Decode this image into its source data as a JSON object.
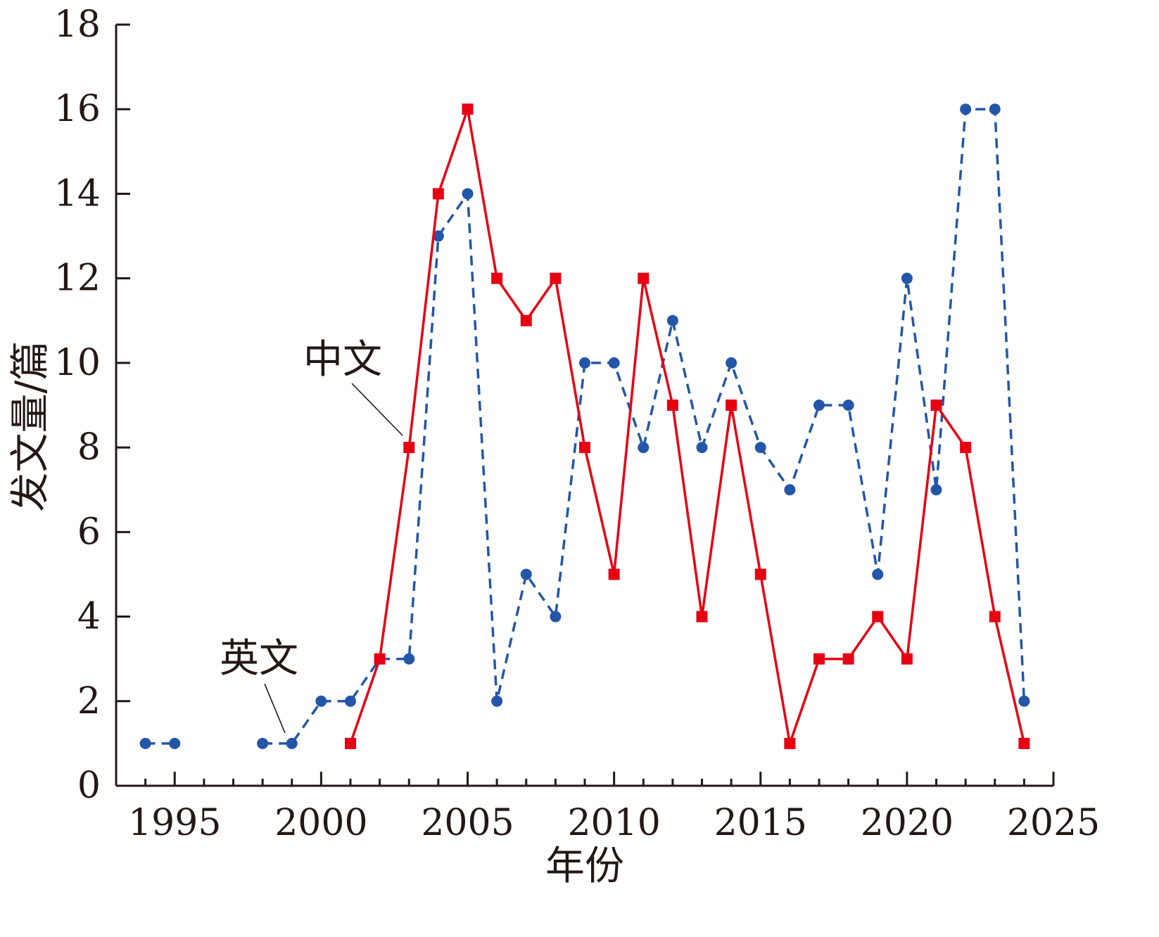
{
  "chart_data": {
    "type": "line",
    "xlabel": "年份",
    "ylabel": "发文量/篇",
    "xlim": [
      1993,
      2025
    ],
    "ylim": [
      0,
      18
    ],
    "x_ticks": [
      1995,
      2000,
      2005,
      2010,
      2015,
      2020,
      2025
    ],
    "y_ticks": [
      0,
      2,
      4,
      6,
      8,
      10,
      12,
      14,
      16,
      18
    ],
    "grid": false,
    "series": [
      {
        "name": "英文",
        "color": "#2356a8",
        "line_style": "dashed",
        "marker": "circle",
        "segments": [
          [
            [
              1994,
              1
            ],
            [
              1995,
              1
            ]
          ],
          [
            [
              1998,
              1
            ],
            [
              1999,
              1
            ],
            [
              2000,
              2
            ],
            [
              2001,
              2
            ],
            [
              2002,
              3
            ],
            [
              2003,
              3
            ],
            [
              2004,
              13
            ],
            [
              2005,
              14
            ],
            [
              2006,
              2
            ],
            [
              2007,
              5
            ],
            [
              2008,
              4
            ],
            [
              2009,
              10
            ],
            [
              2010,
              10
            ],
            [
              2011,
              8
            ],
            [
              2012,
              11
            ],
            [
              2013,
              8
            ],
            [
              2014,
              10
            ],
            [
              2015,
              8
            ],
            [
              2016,
              7
            ],
            [
              2017,
              9
            ],
            [
              2018,
              9
            ],
            [
              2019,
              5
            ],
            [
              2020,
              12
            ],
            [
              2021,
              7
            ],
            [
              2022,
              16
            ],
            [
              2023,
              16
            ],
            [
              2024,
              2
            ]
          ]
        ]
      },
      {
        "name": "中文",
        "color": "#e60012",
        "line_style": "solid",
        "marker": "square",
        "segments": [
          [
            [
              2001,
              1
            ],
            [
              2002,
              3
            ],
            [
              2003,
              8
            ],
            [
              2004,
              14
            ],
            [
              2005,
              16
            ],
            [
              2006,
              12
            ],
            [
              2007,
              11
            ],
            [
              2008,
              12
            ],
            [
              2009,
              8
            ],
            [
              2010,
              5
            ],
            [
              2011,
              12
            ],
            [
              2012,
              9
            ],
            [
              2013,
              4
            ],
            [
              2014,
              9
            ],
            [
              2015,
              5
            ],
            [
              2016,
              1
            ],
            [
              2017,
              3
            ],
            [
              2018,
              3
            ],
            [
              2019,
              4
            ],
            [
              2020,
              3
            ],
            [
              2021,
              9
            ],
            [
              2022,
              8
            ],
            [
              2023,
              4
            ],
            [
              2024,
              1
            ]
          ]
        ]
      }
    ],
    "annotations": [
      {
        "text": "中文",
        "series": 1,
        "point": [
          2003,
          8
        ]
      },
      {
        "text": "英文",
        "series": 0,
        "point": [
          1999,
          1
        ]
      }
    ]
  }
}
